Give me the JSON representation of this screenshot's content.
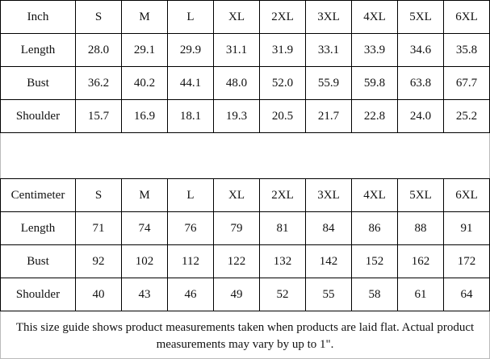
{
  "tables": [
    {
      "header": [
        "Inch",
        "S",
        "M",
        "L",
        "XL",
        "2XL",
        "3XL",
        "4XL",
        "5XL",
        "6XL"
      ],
      "rows": [
        [
          "Length",
          "28.0",
          "29.1",
          "29.9",
          "31.1",
          "31.9",
          "33.1",
          "33.9",
          "34.6",
          "35.8"
        ],
        [
          "Bust",
          "36.2",
          "40.2",
          "44.1",
          "48.0",
          "52.0",
          "55.9",
          "59.8",
          "63.8",
          "67.7"
        ],
        [
          "Shoulder",
          "15.7",
          "16.9",
          "18.1",
          "19.3",
          "20.5",
          "21.7",
          "22.8",
          "24.0",
          "25.2"
        ]
      ]
    },
    {
      "header": [
        "Centimeter",
        "S",
        "M",
        "L",
        "XL",
        "2XL",
        "3XL",
        "4XL",
        "5XL",
        "6XL"
      ],
      "rows": [
        [
          "Length",
          "71",
          "74",
          "76",
          "79",
          "81",
          "84",
          "86",
          "88",
          "91"
        ],
        [
          "Bust",
          "92",
          "102",
          "112",
          "122",
          "132",
          "142",
          "152",
          "162",
          "172"
        ],
        [
          "Shoulder",
          "40",
          "43",
          "46",
          "49",
          "52",
          "55",
          "58",
          "61",
          "64"
        ]
      ]
    }
  ],
  "note": "This size guide shows product measurements taken when products are laid flat. Actual product measurements may vary by up to 1\"."
}
